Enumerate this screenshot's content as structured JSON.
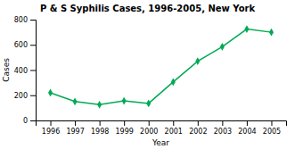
{
  "chart_data": {
    "type": "line",
    "title": "P & S Syphilis Cases, 1996-2005, New York",
    "xlabel": "Year",
    "ylabel": "Cases",
    "x": [
      1996,
      1997,
      1998,
      1999,
      2000,
      2001,
      2002,
      2003,
      2004,
      2005
    ],
    "values": [
      220,
      150,
      125,
      155,
      135,
      305,
      470,
      585,
      725,
      700
    ],
    "xlim": [
      1995.4,
      2005.6
    ],
    "xticks": [
      1996,
      1997,
      1998,
      1999,
      2000,
      2001,
      2002,
      2003,
      2004,
      2005
    ],
    "ylim": [
      0,
      800
    ],
    "yticks": [
      0,
      200,
      400,
      600,
      800
    ],
    "color": "#00aa55",
    "marker": "diamond"
  }
}
